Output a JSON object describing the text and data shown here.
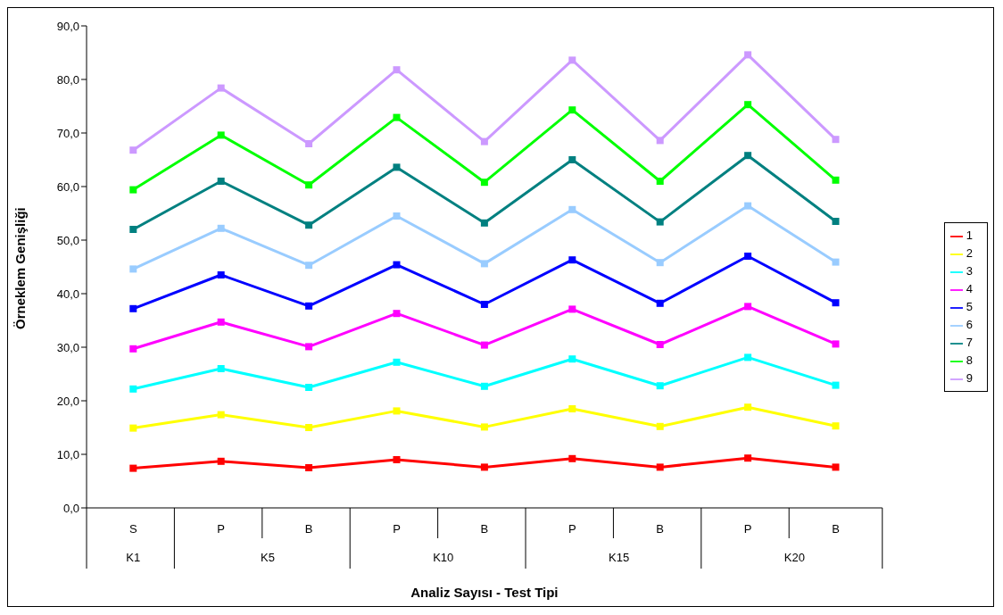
{
  "chart_data": {
    "type": "line",
    "xlabel": "Analiz Sayısı - Test Tipi",
    "ylabel": "Örneklem Genişliği",
    "categories": [
      "S",
      "P",
      "B",
      "P",
      "B",
      "P",
      "B",
      "P",
      "B"
    ],
    "annotations": [
      "K1",
      "K5",
      "K10",
      "K15",
      "K20"
    ],
    "ylim": [
      0,
      90
    ],
    "yticks": [
      {
        "value": 0,
        "label": "0,0"
      },
      {
        "value": 10,
        "label": "10,0"
      },
      {
        "value": 20,
        "label": "20,0"
      },
      {
        "value": 30,
        "label": "30,0"
      },
      {
        "value": 40,
        "label": "40,0"
      },
      {
        "value": 50,
        "label": "50,0"
      },
      {
        "value": 60,
        "label": "60,0"
      },
      {
        "value": 70,
        "label": "70,0"
      },
      {
        "value": 80,
        "label": "80,0"
      },
      {
        "value": 90,
        "label": "90,0"
      }
    ],
    "grid": false,
    "legend": "right",
    "marker": "square",
    "line_style": "solid",
    "series": [
      {
        "name": "1",
        "color": "#ff0000",
        "values": [
          7.4,
          8.7,
          7.5,
          9.0,
          7.6,
          9.2,
          7.6,
          9.3,
          7.6
        ]
      },
      {
        "name": "2",
        "color": "#ffff00",
        "values": [
          14.9,
          17.4,
          15.0,
          18.1,
          15.1,
          18.5,
          15.2,
          18.8,
          15.3
        ]
      },
      {
        "name": "3",
        "color": "#00ffff",
        "values": [
          22.2,
          26.0,
          22.5,
          27.2,
          22.7,
          27.8,
          22.8,
          28.1,
          22.9
        ]
      },
      {
        "name": "4",
        "color": "#ff00ff",
        "values": [
          29.7,
          34.7,
          30.1,
          36.3,
          30.4,
          37.1,
          30.5,
          37.6,
          30.6
        ]
      },
      {
        "name": "5",
        "color": "#0000ff",
        "values": [
          37.2,
          43.5,
          37.7,
          45.4,
          38.0,
          46.3,
          38.2,
          47.0,
          38.3
        ]
      },
      {
        "name": "6",
        "color": "#99ccff",
        "values": [
          44.6,
          52.2,
          45.3,
          54.5,
          45.6,
          55.7,
          45.8,
          56.4,
          45.9
        ]
      },
      {
        "name": "7",
        "color": "#008080",
        "values": [
          52.0,
          61.0,
          52.8,
          63.6,
          53.2,
          65.0,
          53.4,
          65.8,
          53.5
        ]
      },
      {
        "name": "8",
        "color": "#00ff00",
        "values": [
          59.4,
          69.6,
          60.3,
          72.9,
          60.8,
          74.3,
          61.0,
          75.3,
          61.2
        ]
      },
      {
        "name": "9",
        "color": "#cc99ff",
        "values": [
          66.8,
          78.4,
          68.0,
          81.8,
          68.4,
          83.6,
          68.6,
          84.6,
          68.8
        ]
      }
    ]
  }
}
